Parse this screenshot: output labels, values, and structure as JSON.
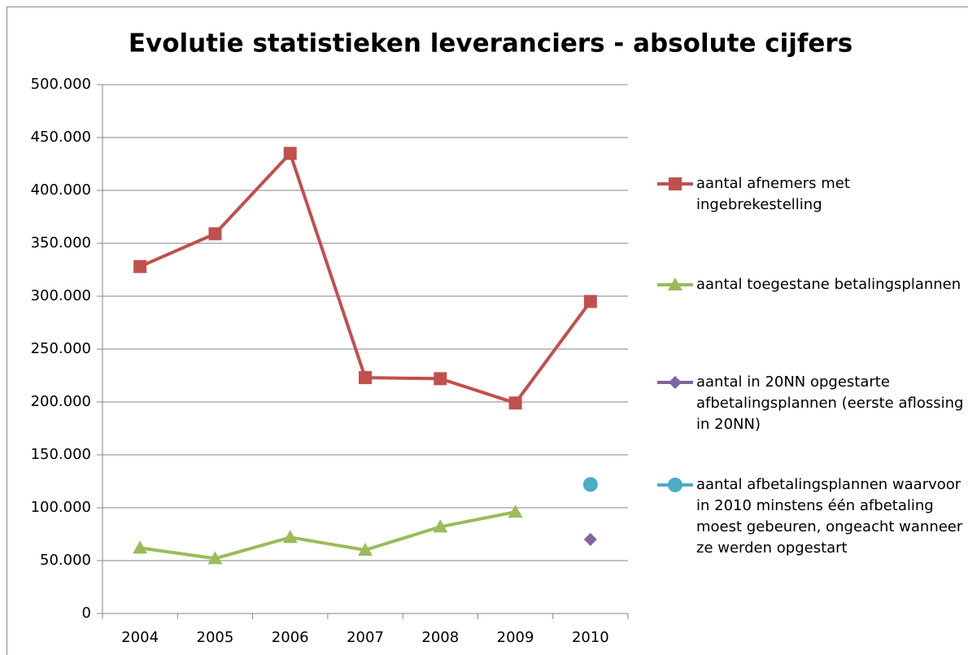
{
  "chart_data": {
    "type": "line",
    "title": "Evolutie statistieken leveranciers - absolute cijfers",
    "categories": [
      "2004",
      "2005",
      "2006",
      "2007",
      "2008",
      "2009",
      "2010"
    ],
    "series": [
      {
        "name": "aantal afnemers met ingebrekestelling",
        "color": "#c0504d",
        "marker": "square",
        "values": [
          328000,
          359000,
          435000,
          223000,
          222000,
          199000,
          295000
        ]
      },
      {
        "name": "aantal toegestane betalingsplannen",
        "color": "#9bbb59",
        "marker": "triangle",
        "values": [
          62000,
          52000,
          72000,
          60000,
          82000,
          96000,
          null
        ]
      },
      {
        "name": "aantal in 20NN opgestarte afbetalingsplannen (eerste aflossing in 20NN)",
        "color": "#8064a2",
        "marker": "diamond",
        "values": [
          null,
          null,
          null,
          null,
          null,
          null,
          70000
        ]
      },
      {
        "name": "aantal afbetalingsplannen waarvoor in 2010 minstens één afbetaling moest gebeuren, ongeacht wanneer ze werden opgestart",
        "color": "#4bacc6",
        "marker": "circle",
        "values": [
          null,
          null,
          null,
          null,
          null,
          null,
          122000
        ]
      }
    ],
    "ylim": [
      0,
      500000
    ],
    "yticks": [
      0,
      {
        "value": 50000,
        "label": "50.000"
      },
      {
        "value": 100000,
        "label": "100.000"
      },
      {
        "value": 150000,
        "label": "150.000"
      },
      {
        "value": 200000,
        "label": "200.000"
      },
      {
        "value": 250000,
        "label": "250.000"
      },
      {
        "value": 300000,
        "label": "300.000"
      },
      {
        "value": 350000,
        "label": "350.000"
      },
      {
        "value": 400000,
        "label": "400.000"
      },
      {
        "value": 450000,
        "label": "450.000"
      },
      {
        "value": 500000,
        "label": "500.000"
      }
    ],
    "grid": true,
    "legend": "right"
  }
}
